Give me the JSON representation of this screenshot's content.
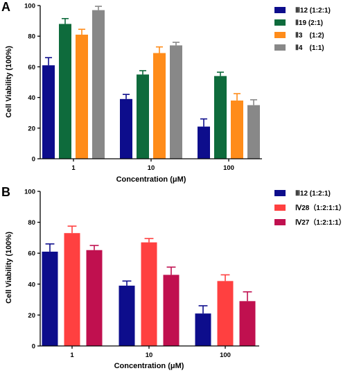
{
  "chart_data": [
    {
      "panel": "A",
      "type": "bar",
      "categories": [
        "1",
        "10",
        "100"
      ],
      "series": [
        {
          "name": "Ⅲ12 (1:2:1)",
          "color": "#0d0d8c",
          "values": [
            61,
            39,
            21
          ],
          "errors": [
            5,
            3,
            5
          ]
        },
        {
          "name": "Ⅱ19 (2:1)",
          "color": "#0e6b3c",
          "values": [
            88,
            55,
            54
          ],
          "errors": [
            3.5,
            2.5,
            2.5
          ]
        },
        {
          "name": "Ⅱ3　(1:2)",
          "color": "#ff8c1a",
          "values": [
            81,
            69,
            38
          ],
          "errors": [
            3.5,
            4,
            4.5
          ]
        },
        {
          "name": "Ⅱ4　(1:1)",
          "color": "#888888",
          "values": [
            97,
            74,
            35
          ],
          "errors": [
            2.5,
            2,
            3.5
          ]
        }
      ],
      "xlabel": "Concentration (μM)",
      "ylabel": "Cell Viability (100%)",
      "ylim": [
        0,
        100
      ],
      "yticks": [
        "0",
        "20",
        "40",
        "60",
        "80",
        "100"
      ],
      "grid": false,
      "legend": "right"
    },
    {
      "panel": "B",
      "type": "bar",
      "categories": [
        "1",
        "10",
        "100"
      ],
      "series": [
        {
          "name": "Ⅲ12 (1:2:1)",
          "color": "#0d0d8c",
          "values": [
            61,
            39,
            21
          ],
          "errors": [
            5,
            3,
            5
          ]
        },
        {
          "name": "Ⅳ28（1:2:1:1）",
          "color": "#ff4040",
          "values": [
            73,
            67,
            42
          ],
          "errors": [
            4.5,
            2.5,
            4
          ]
        },
        {
          "name": "Ⅳ27（1:2:1:1）",
          "color": "#c0104f",
          "values": [
            62,
            46,
            29
          ],
          "errors": [
            3,
            5,
            6
          ]
        }
      ],
      "xlabel": "Concentration (μM)",
      "ylabel": "Cell Viability (100%)",
      "ylim": [
        0,
        100
      ],
      "yticks": [
        "0",
        "20",
        "40",
        "60",
        "80",
        "100"
      ],
      "grid": false,
      "legend": "right"
    }
  ]
}
